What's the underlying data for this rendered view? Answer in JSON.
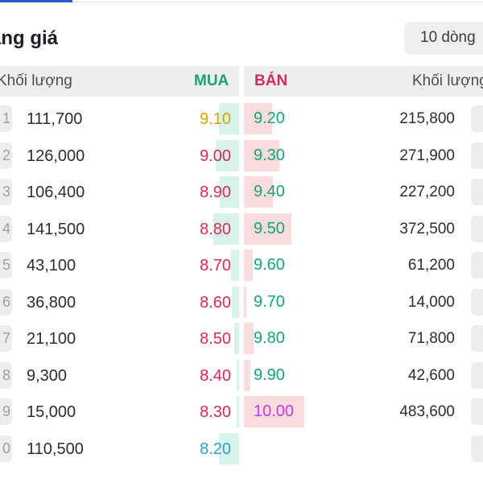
{
  "header": {
    "title": "ảng giá",
    "rows_button": "10 dòng"
  },
  "columns": {
    "left_volume": "Khối lượng",
    "buy": "MUA",
    "sell": "BÁN",
    "right_volume": "Khối lượng"
  },
  "colors": {
    "buy_header": "#1aa278",
    "sell_header": "#d62a57",
    "reference_yellow": "#d4a200",
    "down_red": "#d62a57",
    "up_green": "#1aa278",
    "ceiling_purple": "#c43ee0",
    "floor_blue": "#2e9ed6",
    "buy_bar": "#d8f3ea",
    "sell_bar": "#fadcdf"
  },
  "order_book": [
    {
      "stub": "1",
      "buy_volume": "111,700",
      "buy_price": "9.10",
      "buy_color": "#d4a200",
      "buy_bar_fraction": 0.23,
      "sell_price": "9.20",
      "sell_color": "#1aa278",
      "sell_bar_fraction": 0.23,
      "sell_volume": "215,800"
    },
    {
      "stub": "2",
      "buy_volume": "126,000",
      "buy_price": "9.00",
      "buy_color": "#d62a57",
      "buy_bar_fraction": 0.26,
      "sell_price": "9.30",
      "sell_color": "#1aa278",
      "sell_bar_fraction": 0.29,
      "sell_volume": "271,900"
    },
    {
      "stub": "3",
      "buy_volume": "106,400",
      "buy_price": "8.90",
      "buy_color": "#d62a57",
      "buy_bar_fraction": 0.22,
      "sell_price": "9.40",
      "sell_color": "#1aa278",
      "sell_bar_fraction": 0.24,
      "sell_volume": "227,200"
    },
    {
      "stub": "4",
      "buy_volume": "141,500",
      "buy_price": "8.80",
      "buy_color": "#d62a57",
      "buy_bar_fraction": 0.29,
      "sell_price": "9.50",
      "sell_color": "#1aa278",
      "sell_bar_fraction": 0.39,
      "sell_volume": "372,500"
    },
    {
      "stub": "5",
      "buy_volume": "43,100",
      "buy_price": "8.70",
      "buy_color": "#d62a57",
      "buy_bar_fraction": 0.09,
      "sell_price": "9.60",
      "sell_color": "#1aa278",
      "sell_bar_fraction": 0.07,
      "sell_volume": "61,200"
    },
    {
      "stub": "6",
      "buy_volume": "36,800",
      "buy_price": "8.60",
      "buy_color": "#d62a57",
      "buy_bar_fraction": 0.08,
      "sell_price": "9.70",
      "sell_color": "#1aa278",
      "sell_bar_fraction": 0.02,
      "sell_volume": "14,000"
    },
    {
      "stub": "7",
      "buy_volume": "21,100",
      "buy_price": "8.50",
      "buy_color": "#d62a57",
      "buy_bar_fraction": 0.05,
      "sell_price": "9.80",
      "sell_color": "#1aa278",
      "sell_bar_fraction": 0.08,
      "sell_volume": "71,800"
    },
    {
      "stub": "8",
      "buy_volume": "9,300",
      "buy_price": "8.40",
      "buy_color": "#d62a57",
      "buy_bar_fraction": 0.02,
      "sell_price": "9.90",
      "sell_color": "#1aa278",
      "sell_bar_fraction": 0.05,
      "sell_volume": "42,600"
    },
    {
      "stub": "9",
      "buy_volume": "15,000",
      "buy_price": "8.30",
      "buy_color": "#d62a57",
      "buy_bar_fraction": 0.03,
      "sell_price": "10.00",
      "sell_color": "#c43ee0",
      "sell_bar_fraction": 0.5,
      "sell_volume": "483,600"
    },
    {
      "stub": "0",
      "buy_volume": "110,500",
      "buy_price": "8.20",
      "buy_color": "#2e9ed6",
      "buy_bar_fraction": 0.23,
      "sell_price": "",
      "sell_color": "#1aa278",
      "sell_bar_fraction": 0,
      "sell_volume": ""
    }
  ]
}
